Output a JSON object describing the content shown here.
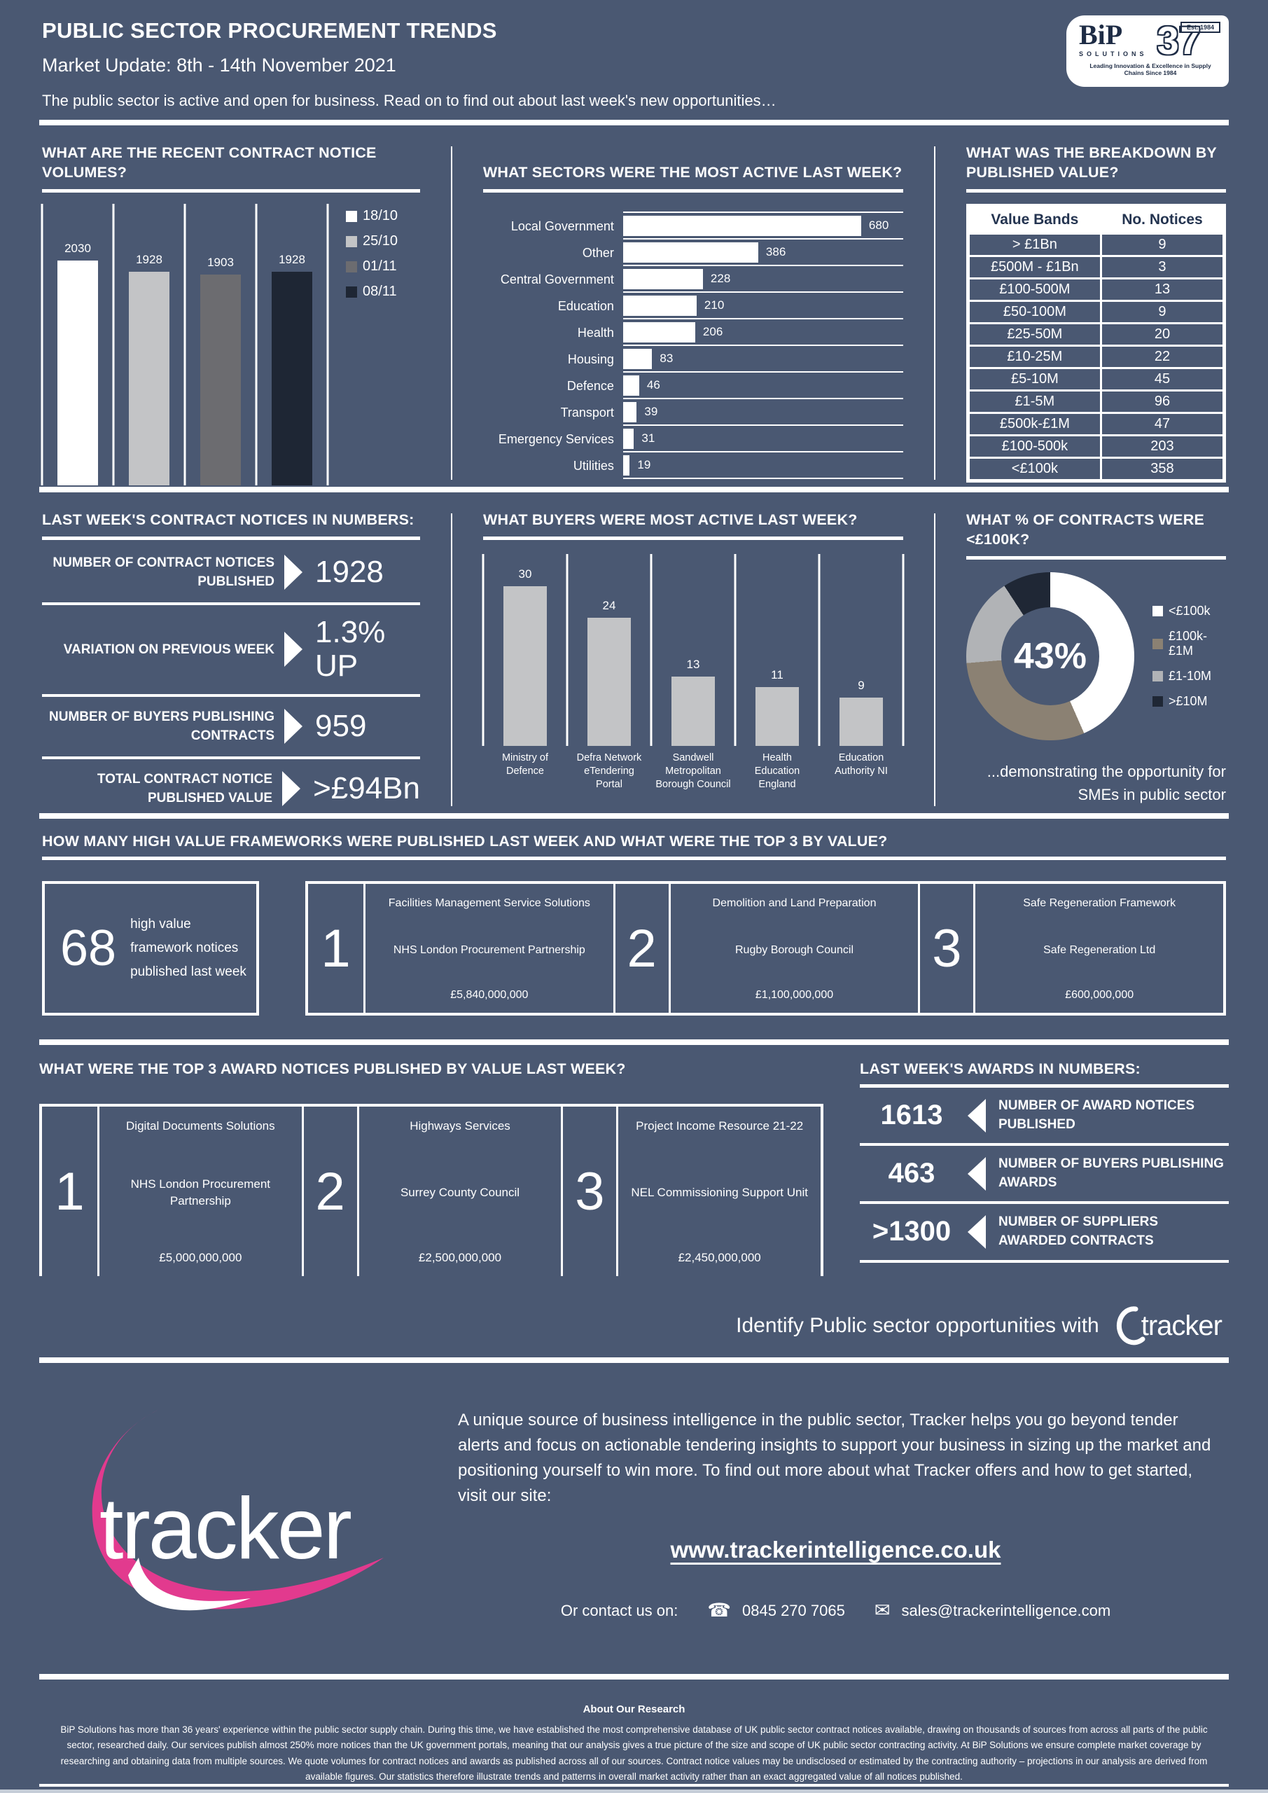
{
  "page": {
    "background": "#4a5872",
    "accent": "#ffffff",
    "brand_pink": "#e23a8e",
    "navy": "#1e2c45"
  },
  "header": {
    "title": "PUBLIC SECTOR PROCUREMENT TRENDS",
    "subtitle": "Market Update: 8th - 14th November 2021",
    "intro": "The public sector is active and open for business. Read on to find out about last week's new opportunities…",
    "logo": {
      "brand": "BiP",
      "sub": "SOLUTIONS",
      "number": "37",
      "est": "Est. 1984",
      "tagline": "Leading Innovation & Excellence in Supply Chains Since 1984"
    }
  },
  "chart_data": [
    {
      "id": "volumes",
      "type": "bar",
      "title": "WHAT ARE THE RECENT CONTRACT NOTICE VOLUMES?",
      "categories": [
        "18/10",
        "25/10",
        "01/11",
        "08/11"
      ],
      "values": [
        2030,
        1928,
        1903,
        1928
      ],
      "colors": [
        "#ffffff",
        "#c3c4c6",
        "#6c6c70",
        "#1e2634"
      ],
      "ylim": [
        0,
        2540
      ],
      "legend_position": "right",
      "grid": "vertical"
    },
    {
      "id": "sectors",
      "type": "bar",
      "orientation": "horizontal",
      "title": "WHAT SECTORS WERE THE MOST ACTIVE LAST WEEK?",
      "categories": [
        "Local Government",
        "Other",
        "Central Government",
        "Education",
        "Health",
        "Housing",
        "Defence",
        "Transport",
        "Emergency Services",
        "Utilities"
      ],
      "values": [
        680,
        386,
        228,
        210,
        206,
        83,
        46,
        39,
        31,
        19
      ],
      "bar_color": "#ffffff",
      "xmax": 800
    },
    {
      "id": "value_bands",
      "type": "table",
      "title": "WHAT WAS THE BREAKDOWN BY PUBLISHED VALUE?",
      "columns": [
        "Value Bands",
        "No. Notices"
      ],
      "rows": [
        [
          "> £1Bn",
          "9"
        ],
        [
          "£500M - £1Bn",
          "3"
        ],
        [
          "£100-500M",
          "13"
        ],
        [
          "£50-100M",
          "9"
        ],
        [
          "£25-50M",
          "20"
        ],
        [
          "£10-25M",
          "22"
        ],
        [
          "£5-10M",
          "45"
        ],
        [
          "£1-5M",
          "96"
        ],
        [
          "£500k-£1M",
          "47"
        ],
        [
          "£100-500k",
          "203"
        ],
        [
          "<£100k",
          "358"
        ]
      ]
    },
    {
      "id": "buyers",
      "type": "bar",
      "title": "WHAT BUYERS WERE MOST ACTIVE LAST WEEK?",
      "categories": [
        "Ministry of Defence",
        "Defra Network eTendering Portal",
        "Sandwell Metropolitan Borough Council",
        "Health Education England",
        "Education Authority NI"
      ],
      "values": [
        30,
        24,
        13,
        11,
        9
      ],
      "bar_color": "#c3c4c6",
      "ylim": [
        0,
        36
      ],
      "grid": "vertical"
    },
    {
      "id": "contracts_under_100k",
      "type": "pie",
      "title": "WHAT % OF CONTRACTS WERE <£100K?",
      "center_label": "43%",
      "labels": [
        "<£100k",
        "£100k-£1M",
        "£1-10M",
        ">£10M"
      ],
      "values": [
        43.4,
        30.3,
        17.1,
        9.2
      ],
      "colors": [
        "#ffffff",
        "#8b8173",
        "#b1b3b6",
        "#1f2735"
      ],
      "caption": "...demonstrating the opportunity for SMEs in public sector"
    }
  ],
  "notices_stats": {
    "heading": "LAST WEEK'S CONTRACT NOTICES IN NUMBERS:",
    "items": [
      {
        "label": "NUMBER OF CONTRACT NOTICES PUBLISHED",
        "value": "1928"
      },
      {
        "label": "VARIATION ON PREVIOUS WEEK",
        "value": "1.3%\nUP"
      },
      {
        "label": "NUMBER OF BUYERS PUBLISHING CONTRACTS",
        "value": "959"
      },
      {
        "label": "TOTAL CONTRACT NOTICE PUBLISHED VALUE",
        "value": ">£94Bn"
      }
    ]
  },
  "frameworks": {
    "heading": "HOW MANY HIGH VALUE FRAMEWORKS WERE PUBLISHED LAST WEEK AND WHAT WERE THE TOP 3 BY VALUE?",
    "count": "68",
    "count_label": "high value framework notices published last week",
    "top3": [
      {
        "rank": "1",
        "title": "Facilities Management Service Solutions",
        "buyer": "NHS London Procurement Partnership",
        "value": "£5,840,000,000"
      },
      {
        "rank": "2",
        "title": "Demolition and Land Preparation",
        "buyer": "Rugby Borough Council",
        "value": "£1,100,000,000"
      },
      {
        "rank": "3",
        "title": "Safe Regeneration Framework",
        "buyer": "Safe Regeneration Ltd",
        "value": "£600,000,000"
      }
    ]
  },
  "awards": {
    "heading": "WHAT WERE THE TOP 3 AWARD NOTICES PUBLISHED BY VALUE LAST WEEK?",
    "top3": [
      {
        "rank": "1",
        "title": "Digital Documents Solutions",
        "buyer": "NHS London Procurement Partnership",
        "value": "£5,000,000,000"
      },
      {
        "rank": "2",
        "title": "Highways Services",
        "buyer": "Surrey County Council",
        "value": "£2,500,000,000"
      },
      {
        "rank": "3",
        "title": "Project Income Resource 21-22",
        "buyer": "NEL Commissioning Support Unit",
        "value": "£2,450,000,000"
      }
    ],
    "numbers": {
      "heading": "LAST WEEK'S AWARDS IN NUMBERS:",
      "items": [
        {
          "value": "1613",
          "label": "NUMBER OF AWARD NOTICES PUBLISHED"
        },
        {
          "value": "463",
          "label": "NUMBER OF BUYERS PUBLISHING AWARDS"
        },
        {
          "value": ">1300",
          "label": "NUMBER OF SUPPLIERS AWARDED CONTRACTS"
        }
      ]
    }
  },
  "tracker": {
    "tagline": "Identify Public sector opportunities with",
    "brand": "tracker",
    "description": "A unique source of business intelligence in the public sector, Tracker helps you go beyond tender alerts and focus on actionable tendering insights to support your business in sizing up the market and positioning yourself to win more. To find out more about what Tracker offers and how to get started, visit our site:",
    "website": "www.trackerintelligence.co.uk",
    "contact_label": "Or contact us on:",
    "phone_icon": "☎",
    "phone": "0845 270 7065",
    "email_icon": "✉",
    "email": "sales@trackerintelligence.com"
  },
  "footer": {
    "heading": "About Our Research",
    "text": "BiP Solutions has more than 36 years' experience within the public sector supply chain. During this time, we have established the most comprehensive database of UK public sector contract notices available, drawing on thousands of sources from across all parts of the public sector, researched daily. Our services publish almost 250% more notices than the UK government portals, meaning that our analysis gives a true picture of the size and scope of UK public sector contracting activity. At BiP Solutions we ensure complete market coverage by researching and obtaining data from multiple sources. We quote volumes for contract notices and awards as published across all of our sources. Contract notice values may be undisclosed or estimated by the contracting authority – projections in our analysis are derived from available figures. Our statistics therefore illustrate trends and patterns in overall market activity rather than an exact aggregated value of all notices published."
  }
}
